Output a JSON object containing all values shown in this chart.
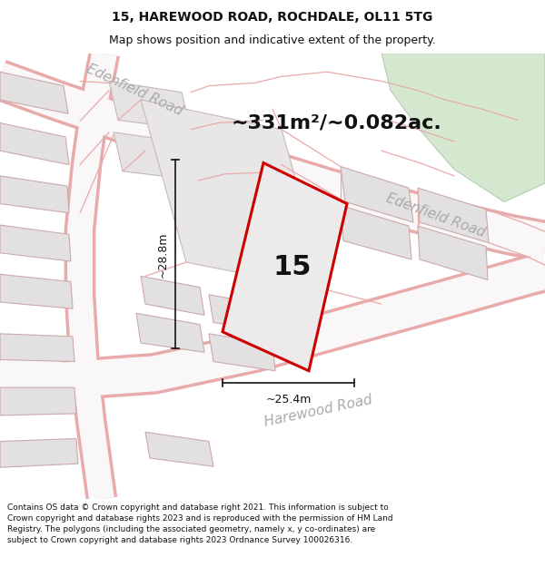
{
  "title": "15, HAREWOOD ROAD, ROCHDALE, OL11 5TG",
  "subtitle": "Map shows position and indicative extent of the property.",
  "area_text": "~331m²/~0.082ac.",
  "label_number": "15",
  "dim_width": "~25.4m",
  "dim_height": "~28.8m",
  "road_label_edenfield_1": "Edenfield Road",
  "road_label_edenfield_2": "Edenfield Road",
  "road_label_harewood": "Harewood Road",
  "footer": "Contains OS data © Crown copyright and database right 2021. This information is subject to Crown copyright and database rights 2023 and is reproduced with the permission of HM Land Registry. The polygons (including the associated geometry, namely x, y co-ordinates) are subject to Crown copyright and database rights 2023 Ordnance Survey 100026316.",
  "map_bg": "#f2f0f0",
  "road_fill": "#f8f6f6",
  "road_edge": "#e8aaaa",
  "plot_fill": "#e6e4e4",
  "plot_edge": "#c8c4c4",
  "prop_fill": "#eceaea",
  "prop_edge": "#cc0000",
  "green_fill": "#d4e8d0",
  "green_edge": "#b8ccb4",
  "dim_color": "#111111",
  "text_dark": "#222222",
  "text_road": "#aaaaaa",
  "footer_fs": 6.5,
  "title_fs": 10,
  "subtitle_fs": 9,
  "area_fs": 16,
  "num_fs": 22,
  "road_fs": 11
}
